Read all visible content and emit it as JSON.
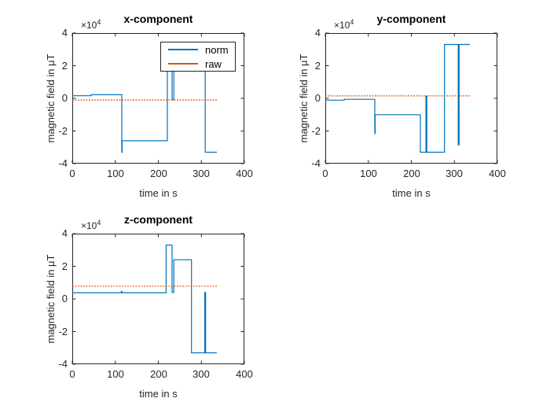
{
  "figure": {
    "background": "#ffffff",
    "axis_color": "#262626",
    "norm_color": "#0072BD",
    "raw_color": "#D95319"
  },
  "chart_data": [
    {
      "type": "line",
      "title": "x-component",
      "xlabel": "time in s",
      "ylabel": "magnetic field in μT",
      "offset": {
        "base": "×10",
        "exp": "4"
      },
      "xlim": [
        0,
        400
      ],
      "ylim": [
        -40000,
        40000
      ],
      "xticks": [
        0,
        100,
        200,
        300,
        400
      ],
      "xtick_labels": [
        "0",
        "100",
        "200",
        "300",
        "400"
      ],
      "yticks": [
        -40000,
        -20000,
        0,
        20000,
        40000
      ],
      "ytick_labels": [
        "-4",
        "-2",
        "0",
        "2",
        "4"
      ],
      "grid": false,
      "legend": {
        "position": "northeast",
        "entries": [
          "norm",
          "raw"
        ]
      },
      "series": [
        {
          "name": "norm",
          "color": "#0072BD",
          "linestyle": "solid",
          "points": [
            [
              0,
              1600
            ],
            [
              44,
              1600
            ],
            [
              44,
              2200
            ],
            [
              115,
              2200
            ],
            [
              115,
              -33000
            ],
            [
              116,
              -33000
            ],
            [
              116,
              -26000
            ],
            [
              221,
              -26000
            ],
            [
              221,
              33000
            ],
            [
              232,
              33000
            ],
            [
              232,
              -800
            ],
            [
              236,
              -800
            ],
            [
              236,
              24000
            ],
            [
              309,
              24000
            ],
            [
              309,
              -33000
            ],
            [
              336,
              -33000
            ]
          ]
        },
        {
          "name": "raw",
          "color": "#D95319",
          "linestyle": "dotted",
          "points": [
            [
              0,
              -1000
            ],
            [
              336,
              -1000
            ]
          ]
        }
      ]
    },
    {
      "type": "line",
      "title": "y-component",
      "xlabel": "time in s",
      "ylabel": "magnetic field in μT",
      "offset": {
        "base": "×10",
        "exp": "4"
      },
      "xlim": [
        0,
        400
      ],
      "ylim": [
        -40000,
        40000
      ],
      "xticks": [
        0,
        100,
        200,
        300,
        400
      ],
      "xtick_labels": [
        "0",
        "100",
        "200",
        "300",
        "400"
      ],
      "yticks": [
        -40000,
        -20000,
        0,
        20000,
        40000
      ],
      "ytick_labels": [
        "-4",
        "-2",
        "0",
        "2",
        "4"
      ],
      "grid": false,
      "legend": null,
      "series": [
        {
          "name": "norm",
          "color": "#0072BD",
          "linestyle": "solid",
          "points": [
            [
              0,
              -1100
            ],
            [
              44,
              -1100
            ],
            [
              44,
              -600
            ],
            [
              115,
              -600
            ],
            [
              115,
              -21500
            ],
            [
              116,
              -21500
            ],
            [
              116,
              -10000
            ],
            [
              221,
              -10000
            ],
            [
              221,
              -33000
            ],
            [
              234,
              -33000
            ],
            [
              234,
              1200
            ],
            [
              236,
              1200
            ],
            [
              236,
              -33000
            ],
            [
              277,
              -33000
            ],
            [
              277,
              33000
            ],
            [
              309,
              33000
            ],
            [
              309,
              -28500
            ],
            [
              311,
              -28500
            ],
            [
              311,
              33000
            ],
            [
              336,
              33000
            ]
          ]
        },
        {
          "name": "raw",
          "color": "#D95319",
          "linestyle": "dotted",
          "points": [
            [
              0,
              1500
            ],
            [
              336,
              1500
            ]
          ]
        }
      ]
    },
    {
      "type": "line",
      "title": "z-component",
      "xlabel": "time in s",
      "ylabel": "magnetic field in μT",
      "offset": {
        "base": "×10",
        "exp": "4"
      },
      "xlim": [
        0,
        400
      ],
      "ylim": [
        -40000,
        40000
      ],
      "xticks": [
        0,
        100,
        200,
        300,
        400
      ],
      "xtick_labels": [
        "0",
        "100",
        "200",
        "300",
        "400"
      ],
      "yticks": [
        -40000,
        -20000,
        0,
        20000,
        40000
      ],
      "ytick_labels": [
        "-4",
        "-2",
        "0",
        "2",
        "4"
      ],
      "grid": false,
      "legend": null,
      "series": [
        {
          "name": "norm",
          "color": "#0072BD",
          "linestyle": "solid",
          "points": [
            [
              0,
              3800
            ],
            [
              114,
              3800
            ],
            [
              114,
              4600
            ],
            [
              116,
              4600
            ],
            [
              116,
              3800
            ],
            [
              218,
              3800
            ],
            [
              218,
              33000
            ],
            [
              232,
              33000
            ],
            [
              232,
              4000
            ],
            [
              236,
              4000
            ],
            [
              236,
              24000
            ],
            [
              277,
              24000
            ],
            [
              277,
              -33000
            ],
            [
              308,
              -33000
            ],
            [
              308,
              4000
            ],
            [
              310,
              4000
            ],
            [
              310,
              -33000
            ],
            [
              336,
              -33000
            ]
          ]
        },
        {
          "name": "raw",
          "color": "#D95319",
          "linestyle": "dotted",
          "points": [
            [
              0,
              7800
            ],
            [
              336,
              7800
            ]
          ]
        }
      ]
    }
  ]
}
